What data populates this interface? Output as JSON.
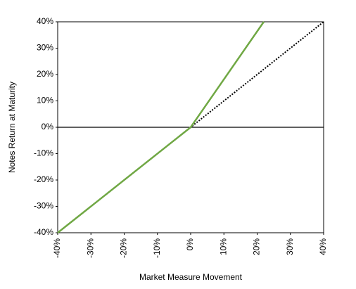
{
  "chart_data": {
    "type": "line",
    "x_label": "Market Measure Movement",
    "y_label": "Notes Return at Maturity",
    "series": [
      {
        "color": "#000000",
        "style": "dotted",
        "x": [
          -40,
          40
        ],
        "values": [
          -40,
          40
        ]
      },
      {
        "color": "#70a844",
        "style": "solid",
        "x": [
          -40,
          0,
          22
        ],
        "values": [
          -40,
          0,
          40
        ]
      }
    ],
    "xlim": [
      -40,
      40
    ],
    "xticks": [
      {
        "value": -40,
        "label": "-40%"
      },
      {
        "value": -30,
        "label": "-30%"
      },
      {
        "value": -20,
        "label": "-20%"
      },
      {
        "value": -10,
        "label": "-10%"
      },
      {
        "value": 0,
        "label": "0%"
      },
      {
        "value": 10,
        "label": "10%"
      },
      {
        "value": 20,
        "label": "20%"
      },
      {
        "value": 30,
        "label": "30%"
      },
      {
        "value": 40,
        "label": "40%"
      }
    ],
    "ylim": [
      -40,
      40
    ],
    "yticks": [
      {
        "value": -40,
        "label": "-40%"
      },
      {
        "value": -30,
        "label": "-30%"
      },
      {
        "value": -20,
        "label": "-20%"
      },
      {
        "value": -10,
        "label": "-10%"
      },
      {
        "value": 0,
        "label": "0%"
      },
      {
        "value": 10,
        "label": "10%"
      },
      {
        "value": 20,
        "label": "20%"
      },
      {
        "value": 30,
        "label": "30%"
      },
      {
        "value": 40,
        "label": "40%"
      }
    ],
    "zero_line": true
  }
}
